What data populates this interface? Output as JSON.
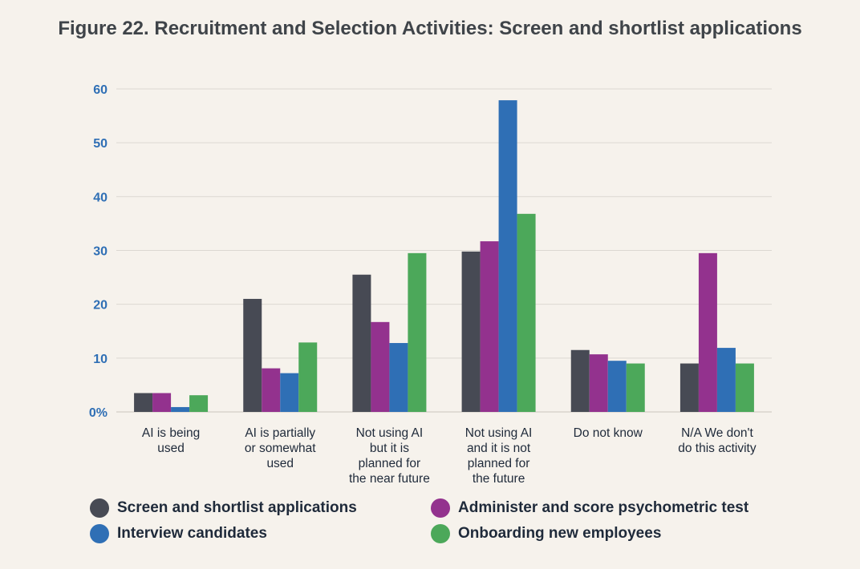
{
  "chart_data": {
    "type": "bar",
    "title": "Figure 22. Recruitment and Selection Activities: Screen and shortlist applications",
    "ylim": [
      0,
      60
    ],
    "yticks": [
      "0%",
      "10",
      "20",
      "30",
      "40",
      "50",
      "60"
    ],
    "grid": true,
    "legend_position": "bottom",
    "categories": [
      [
        "AI is being",
        "used"
      ],
      [
        "AI is partially",
        "or somewhat",
        "used"
      ],
      [
        "Not using AI",
        "but it is",
        "planned for",
        "the near future"
      ],
      [
        "Not using AI",
        "and it is not",
        "planned for",
        "the future"
      ],
      [
        "Do not know"
      ],
      [
        "N/A We don't",
        "do this activity"
      ]
    ],
    "series": [
      {
        "name": "Screen and shortlist applications",
        "color": "#474a54",
        "values": [
          3.5,
          21,
          25.5,
          29.8,
          11.5,
          9
        ]
      },
      {
        "name": "Administer and score psychometric test",
        "color": "#93328e",
        "values": [
          3.5,
          8.1,
          16.7,
          31.7,
          10.7,
          29.5
        ]
      },
      {
        "name": "Interview candidates",
        "color": "#2f6fb5",
        "values": [
          0.9,
          7.2,
          12.8,
          57.9,
          9.5,
          11.9
        ]
      },
      {
        "name": "Onboarding new employees",
        "color": "#4ca85a",
        "values": [
          3.1,
          12.9,
          29.5,
          36.8,
          9,
          9
        ]
      }
    ]
  }
}
